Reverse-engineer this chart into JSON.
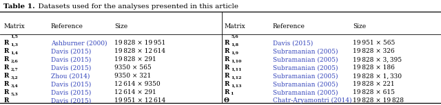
{
  "title_bold": "Table 1.",
  "title_rest": "  Datasets used for the analyses presented in this article",
  "col_headers": [
    "Matrix",
    "Reference",
    "Size"
  ],
  "left_rows": [
    [
      "R",
      "1,5",
      "Ashburner (2000)",
      "19 828 × 19 951"
    ],
    [
      "R",
      "1,3",
      "Davis (2015)",
      "19 828 × 12 614"
    ],
    [
      "R",
      "1,4",
      "Davis (2015)",
      "19 828 × 291"
    ],
    [
      "R",
      "2,6",
      "Davis (2015)",
      "9350 × 565"
    ],
    [
      "R",
      "2,7",
      "Zhou (2014)",
      "9350 × 321"
    ],
    [
      "R",
      "3,2",
      "Davis (2015)",
      "12 614 × 9350"
    ],
    [
      "R",
      "3,4",
      "Davis (2015)",
      "12 614 × 291"
    ],
    [
      "R",
      "5,3",
      "Davis (2015)",
      "19 951 × 12 614"
    ]
  ],
  "right_rows": [
    [
      "R",
      "5,6",
      "Davis (2015)",
      "19 951 × 565"
    ],
    [
      "R",
      "1,8",
      "Subramanian (2005)",
      "19 828 × 326"
    ],
    [
      "R",
      "1,9",
      "Subramanian (2005)",
      "19 828 × 3, 395"
    ],
    [
      "R",
      "1,10",
      "Subramanian (2005)",
      "19 828 × 186"
    ],
    [
      "R",
      "1,11",
      "Subramanian (2005)",
      "19 828 × 1, 330"
    ],
    [
      "R",
      "1,12",
      "Subramanian (2005)",
      "19 828 × 221"
    ],
    [
      "R",
      "1,13",
      "Subramanian (2005)",
      "19 828 × 615"
    ],
    [
      "Θ",
      "1",
      "Chatr-Aryamontri (2014)",
      "19 828 × 19 828"
    ]
  ],
  "ref_color": "#3344bb",
  "header_color": "#000000",
  "matrix_color": "#000000",
  "size_color": "#000000",
  "bg_color": "#ffffff",
  "font_size": 6.5,
  "title_fontsize": 7.5
}
